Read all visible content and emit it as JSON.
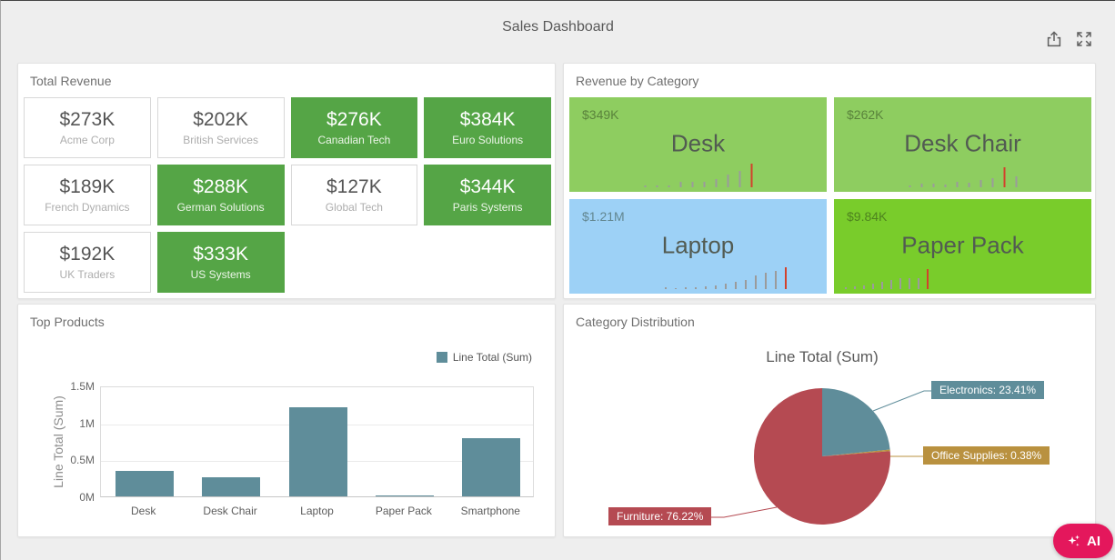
{
  "header": {
    "title": "Sales Dashboard"
  },
  "icons": {
    "export": "export-icon",
    "maximize": "maximize-icon"
  },
  "panels": {
    "total_revenue": {
      "title": "Total Revenue",
      "highlight_color": "#55a546",
      "highlight_border": "#55a546",
      "cards": [
        {
          "value": "$273K",
          "label": "Acme Corp",
          "highlighted": false
        },
        {
          "value": "$202K",
          "label": "British Services",
          "highlighted": false
        },
        {
          "value": "$276K",
          "label": "Canadian Tech",
          "highlighted": true
        },
        {
          "value": "$384K",
          "label": "Euro Solutions",
          "highlighted": true
        },
        {
          "value": "$189K",
          "label": "French Dynamics",
          "highlighted": false
        },
        {
          "value": "$288K",
          "label": "German Solutions",
          "highlighted": true
        },
        {
          "value": "$127K",
          "label": "Global Tech",
          "highlighted": false
        },
        {
          "value": "$344K",
          "label": "Paris Systems",
          "highlighted": true
        },
        {
          "value": "$192K",
          "label": "UK Traders",
          "highlighted": false
        },
        {
          "value": "$333K",
          "label": "US Systems",
          "highlighted": true
        }
      ]
    },
    "revenue_by_category": {
      "title": "Revenue by Category",
      "spark_color": "#9b9b9b",
      "spark_highlight_color": "#d2422c",
      "cards": [
        {
          "name": "Desk",
          "value": "$349K",
          "color": "#8ecd60",
          "spark_align": "center",
          "spark": [
            2,
            2,
            2,
            6,
            6,
            6,
            9,
            14,
            18,
            26
          ],
          "red_index": 9
        },
        {
          "name": "Desk Chair",
          "value": "$262K",
          "color": "#8ecd60",
          "spark_align": "center",
          "spark": [
            2,
            4,
            4,
            3,
            6,
            5,
            8,
            10,
            22,
            12
          ],
          "red_index": 8
        },
        {
          "name": "Laptop",
          "value": "$1.21M",
          "color": "#9dd1f6",
          "spark_align": "right",
          "spark": [
            2,
            1,
            2,
            2,
            3,
            4,
            6,
            8,
            10,
            15,
            18,
            20,
            24
          ],
          "red_index": 12
        },
        {
          "name": "Paper Pack",
          "value": "$9.84K",
          "color": "#79cc2b",
          "spark_align": "left",
          "spark": [
            2,
            3,
            4,
            6,
            8,
            10,
            12,
            12,
            12,
            22
          ],
          "red_index": 9
        }
      ]
    },
    "top_products": {
      "title": "Top Products"
    },
    "category_distribution": {
      "title": "Category Distribution"
    }
  },
  "chart_data": [
    {
      "type": "bar",
      "panel": "Top Products",
      "series_name": "Line Total (Sum)",
      "legend_position": "top-right",
      "ylabel": "Line Total (Sum)",
      "ylim": [
        0,
        1500000
      ],
      "yticks": [
        {
          "label": "0M",
          "value": 0
        },
        {
          "label": "0.5M",
          "value": 500000
        },
        {
          "label": "1M",
          "value": 1000000
        },
        {
          "label": "1.5M",
          "value": 1500000
        }
      ],
      "categories": [
        "Desk",
        "Desk Chair",
        "Laptop",
        "Paper Pack",
        "Smartphone"
      ],
      "values": [
        349000,
        262000,
        1210000,
        9840,
        790000
      ],
      "bar_color": "#5f8d9a",
      "grid": true
    },
    {
      "type": "pie",
      "panel": "Category Distribution",
      "title": "Line Total (Sum)",
      "start_angle_deg": -90,
      "direction": "clockwise",
      "labels": "outside-callout",
      "slices": [
        {
          "label": "Electronics",
          "pct": 23.41,
          "color": "#5f8d9a"
        },
        {
          "label": "Office Supplies",
          "pct": 0.38,
          "color": "#b9913f"
        },
        {
          "label": "Furniture",
          "pct": 76.22,
          "color": "#b54a52"
        }
      ]
    }
  ],
  "ai_button": {
    "label": "AI",
    "color": "#e4175c",
    "icon": "sparkles-icon"
  }
}
